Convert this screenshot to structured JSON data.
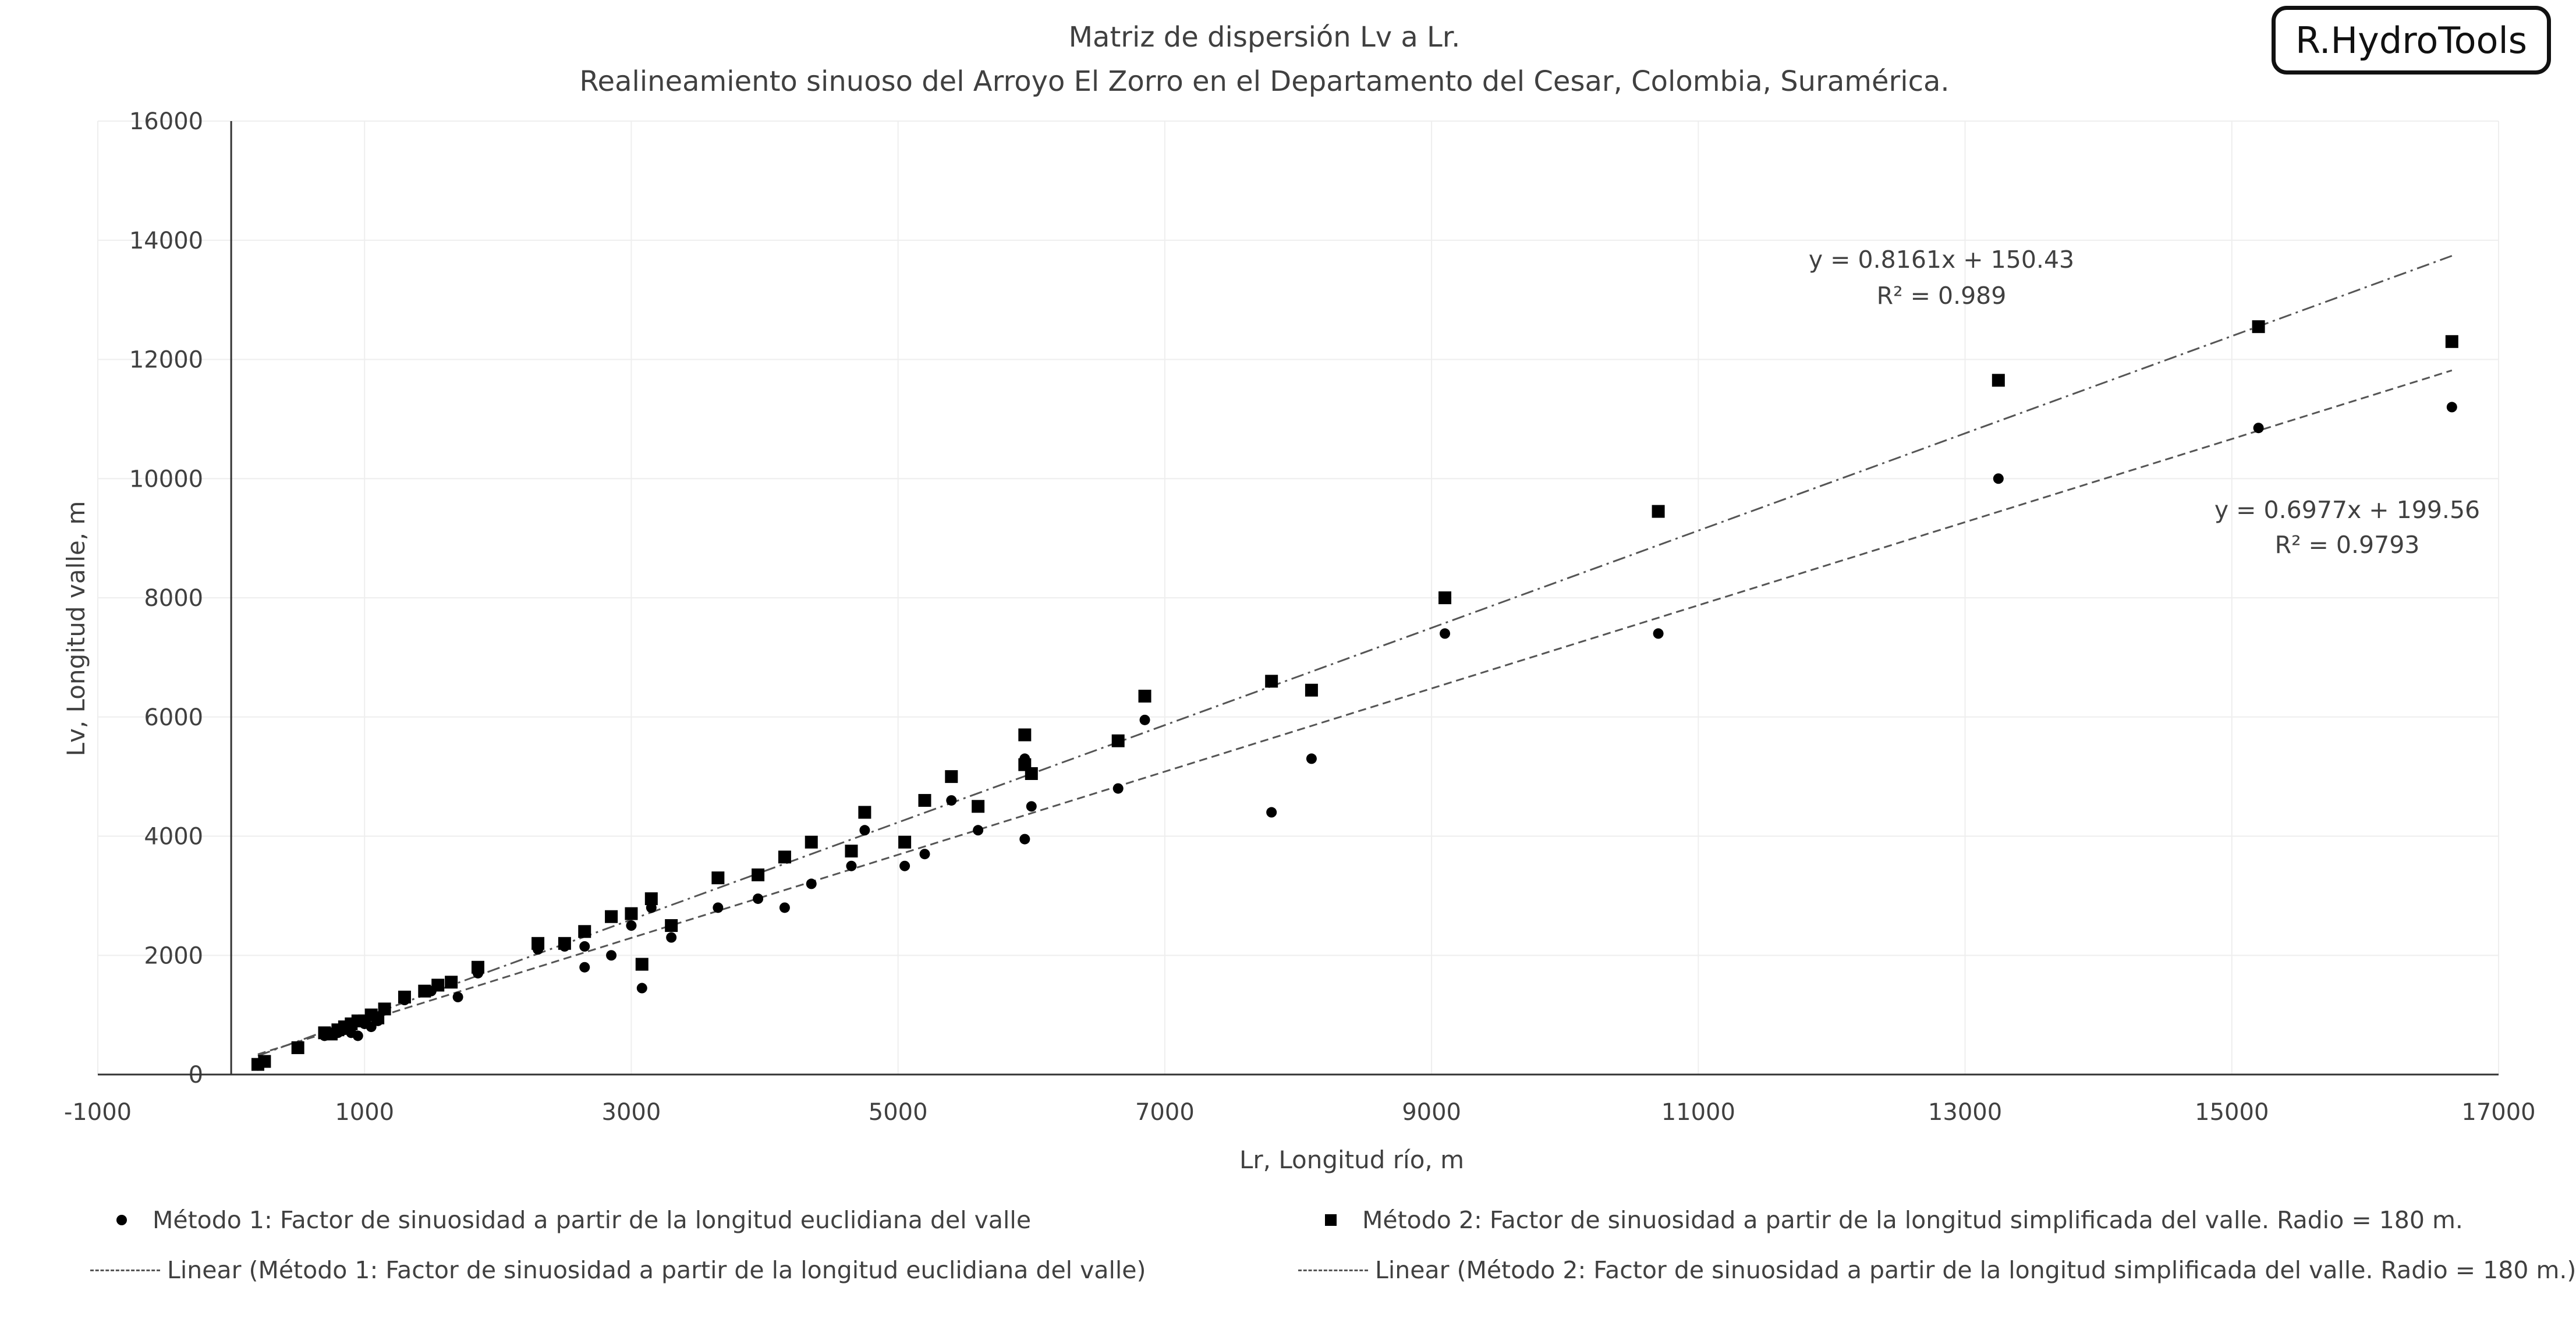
{
  "chart_data": {
    "type": "scatter",
    "title": "Matriz de dispersión Lv a Lr.",
    "subtitle": "Realineamiento sinuoso del Arroyo El Zorro en el Departamento del Cesar, Colombia, Suramérica.",
    "xlabel": "Lr, Longitud río, m",
    "ylabel": "Lv, Longitud valle, m",
    "xlim": [
      -1000,
      17000
    ],
    "ylim": [
      0,
      16000
    ],
    "x_ticks": [
      "-1000",
      "1000",
      "3000",
      "5000",
      "7000",
      "9000",
      "11000",
      "13000",
      "15000",
      "17000"
    ],
    "y_ticks": [
      "0",
      "2000",
      "4000",
      "6000",
      "8000",
      "10000",
      "12000",
      "14000",
      "16000"
    ],
    "grid": true,
    "legend_position": "bottom",
    "series": [
      {
        "name": "Método 1: Factor de sinuosidad a partir de la longitud euclidiana del valle",
        "marker": "circle",
        "color": "#000000",
        "points": [
          [
            200,
            150
          ],
          [
            250,
            200
          ],
          [
            700,
            650
          ],
          [
            750,
            700
          ],
          [
            800,
            700
          ],
          [
            850,
            750
          ],
          [
            900,
            700
          ],
          [
            950,
            650
          ],
          [
            1000,
            850
          ],
          [
            1050,
            800
          ],
          [
            1100,
            900
          ],
          [
            1300,
            1250
          ],
          [
            1500,
            1400
          ],
          [
            1700,
            1300
          ],
          [
            1850,
            1700
          ],
          [
            2300,
            2100
          ],
          [
            2500,
            2150
          ],
          [
            2650,
            2150
          ],
          [
            2650,
            1800
          ],
          [
            2850,
            2000
          ],
          [
            3000,
            2500
          ],
          [
            3080,
            1450
          ],
          [
            3150,
            2800
          ],
          [
            3300,
            2300
          ],
          [
            3650,
            2800
          ],
          [
            3950,
            2950
          ],
          [
            4150,
            2800
          ],
          [
            4350,
            3200
          ],
          [
            4650,
            3500
          ],
          [
            4750,
            4100
          ],
          [
            5050,
            3500
          ],
          [
            5200,
            3700
          ],
          [
            5400,
            4600
          ],
          [
            5600,
            4100
          ],
          [
            5950,
            3950
          ],
          [
            5950,
            5300
          ],
          [
            6000,
            4500
          ],
          [
            6650,
            4800
          ],
          [
            6850,
            5950
          ],
          [
            7800,
            4400
          ],
          [
            8100,
            5300
          ],
          [
            9100,
            7400
          ],
          [
            10700,
            7400
          ],
          [
            13250,
            10000
          ],
          [
            15200,
            10850
          ],
          [
            16650,
            11200
          ]
        ]
      },
      {
        "name": "Método 2: Factor de sinuosidad a partir de la longitud simplificada del valle. Radio = 180 m.",
        "marker": "square",
        "color": "#000000",
        "points": [
          [
            200,
            170
          ],
          [
            250,
            220
          ],
          [
            500,
            450
          ],
          [
            700,
            700
          ],
          [
            750,
            680
          ],
          [
            800,
            750
          ],
          [
            850,
            800
          ],
          [
            900,
            850
          ],
          [
            950,
            900
          ],
          [
            1000,
            900
          ],
          [
            1050,
            1000
          ],
          [
            1100,
            950
          ],
          [
            1150,
            1100
          ],
          [
            1300,
            1300
          ],
          [
            1450,
            1400
          ],
          [
            1550,
            1500
          ],
          [
            1650,
            1550
          ],
          [
            1850,
            1800
          ],
          [
            2300,
            2200
          ],
          [
            2500,
            2200
          ],
          [
            2650,
            2400
          ],
          [
            2850,
            2650
          ],
          [
            3000,
            2700
          ],
          [
            3080,
            1850
          ],
          [
            3150,
            2950
          ],
          [
            3300,
            2500
          ],
          [
            3650,
            3300
          ],
          [
            3950,
            3350
          ],
          [
            4150,
            3650
          ],
          [
            4350,
            3900
          ],
          [
            4650,
            3750
          ],
          [
            4750,
            4400
          ],
          [
            5050,
            3900
          ],
          [
            5200,
            4600
          ],
          [
            5400,
            5000
          ],
          [
            5600,
            4500
          ],
          [
            5950,
            5700
          ],
          [
            5950,
            5200
          ],
          [
            6000,
            5050
          ],
          [
            6650,
            5600
          ],
          [
            6850,
            6350
          ],
          [
            7800,
            6600
          ],
          [
            8100,
            6450
          ],
          [
            9100,
            8000
          ],
          [
            10700,
            9450
          ],
          [
            13250,
            11650
          ],
          [
            15200,
            12550
          ],
          [
            16650,
            12300
          ]
        ]
      }
    ],
    "trendlines": [
      {
        "name": "Linear (Método 1: Factor de sinuosidad a partir de la longitud euclidiana del valle)",
        "slope": 0.6977,
        "intercept": 199.56,
        "x_range": [
          200,
          16650
        ],
        "style": "dashed",
        "equation": "y = 0.6977x + 199.56",
        "r2": "R² = 0.9793"
      },
      {
        "name": "Linear (Método 2: Factor de sinuosidad a partir de la longitud simplificada del valle. Radio = 180 m.)",
        "slope": 0.8161,
        "intercept": 150.43,
        "x_range": [
          200,
          16650
        ],
        "style": "dash-dot",
        "equation": "y = 0.8161x + 150.43",
        "r2": "R² = 0.989"
      }
    ]
  },
  "logo": {
    "text": "R.HydroTools"
  },
  "legend": {
    "items": [
      {
        "label": "Método 1: Factor de sinuosidad a partir de la longitud euclidiana del valle",
        "kind": "circle"
      },
      {
        "label": "Método 2: Factor de sinuosidad a partir de la longitud simplificada del valle. Radio = 180 m.",
        "kind": "square"
      },
      {
        "label": "Linear (Método 1: Factor de sinuosidad a partir de la longitud euclidiana del valle)",
        "kind": "dashed-line"
      },
      {
        "label": "Linear (Método 2: Factor de sinuosidad a partir de la longitud simplificada del valle. Radio = 180 m.)",
        "kind": "dashdot-line"
      }
    ]
  }
}
